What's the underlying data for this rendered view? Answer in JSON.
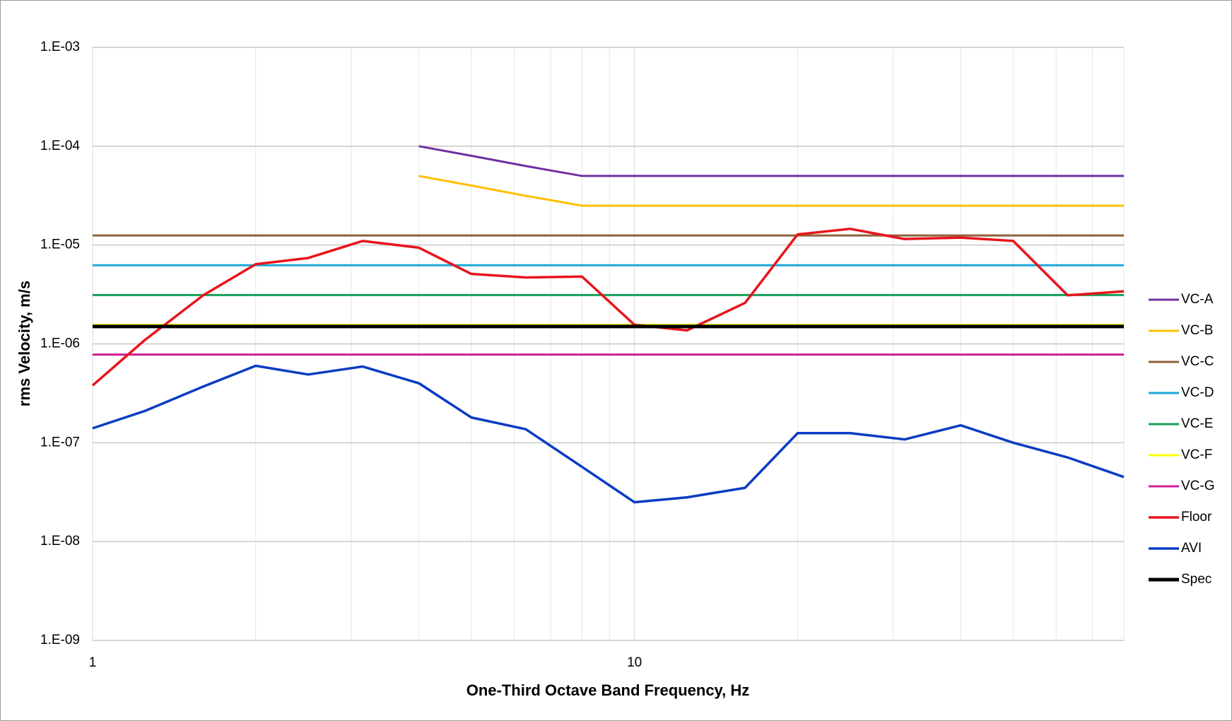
{
  "chart_data": {
    "type": "line",
    "x_label": "One-Third Octave Band Frequency, Hz",
    "y_label": "rms Velocity, m/s",
    "x": [
      1,
      1.25,
      1.6,
      2,
      2.5,
      3.15,
      4,
      5,
      6.3,
      8,
      10,
      12.5,
      16,
      20,
      25,
      31.5,
      40,
      50,
      63,
      80
    ],
    "xlim": [
      1,
      80
    ],
    "xticks": [
      1,
      10
    ],
    "x_minor_grid": [
      2,
      3,
      4,
      5,
      6,
      7,
      8,
      9,
      20,
      30,
      40,
      50,
      60,
      70,
      80
    ],
    "x_log": true,
    "y_log": true,
    "ylim": [
      1e-09,
      0.001
    ],
    "yticks": [
      {
        "value": 1e-09,
        "label": "1.E-09"
      },
      {
        "value": 1e-08,
        "label": "1.E-08"
      },
      {
        "value": 1e-07,
        "label": "1.E-07"
      },
      {
        "value": 1e-06,
        "label": "1.E-06"
      },
      {
        "value": 1e-05,
        "label": "1.E-05"
      },
      {
        "value": 0.0001,
        "label": "1.E-04"
      },
      {
        "value": 0.001,
        "label": "1.E-03"
      }
    ],
    "grid": true,
    "legend": "right",
    "series": [
      {
        "name": "VC-A",
        "color": "#7030a0",
        "width": 3,
        "values": [
          null,
          null,
          null,
          null,
          null,
          null,
          0.0001,
          8e-05,
          6.3e-05,
          5e-05,
          5e-05,
          5e-05,
          5e-05,
          5e-05,
          5e-05,
          5e-05,
          5e-05,
          5e-05,
          5e-05,
          5e-05
        ]
      },
      {
        "name": "VC-B",
        "color": "#ffc000",
        "width": 3,
        "values": [
          null,
          null,
          null,
          null,
          null,
          null,
          5e-05,
          4e-05,
          3.15e-05,
          2.5e-05,
          2.5e-05,
          2.5e-05,
          2.5e-05,
          2.5e-05,
          2.5e-05,
          2.5e-05,
          2.5e-05,
          2.5e-05,
          2.5e-05,
          2.5e-05
        ]
      },
      {
        "name": "VC-C",
        "color": "#8c6239",
        "width": 3,
        "values": [
          1.25e-05,
          1.25e-05,
          1.25e-05,
          1.25e-05,
          1.25e-05,
          1.25e-05,
          1.25e-05,
          1.25e-05,
          1.25e-05,
          1.25e-05,
          1.25e-05,
          1.25e-05,
          1.25e-05,
          1.25e-05,
          1.25e-05,
          1.25e-05,
          1.25e-05,
          1.25e-05,
          1.25e-05,
          1.25e-05
        ]
      },
      {
        "name": "VC-D",
        "color": "#1aa7d8",
        "width": 3,
        "values": [
          6.25e-06,
          6.25e-06,
          6.25e-06,
          6.25e-06,
          6.25e-06,
          6.25e-06,
          6.25e-06,
          6.25e-06,
          6.25e-06,
          6.25e-06,
          6.25e-06,
          6.25e-06,
          6.25e-06,
          6.25e-06,
          6.25e-06,
          6.25e-06,
          6.25e-06,
          6.25e-06,
          6.25e-06,
          6.25e-06
        ]
      },
      {
        "name": "VC-E",
        "color": "#16a05a",
        "width": 3,
        "values": [
          3.12e-06,
          3.12e-06,
          3.12e-06,
          3.12e-06,
          3.12e-06,
          3.12e-06,
          3.12e-06,
          3.12e-06,
          3.12e-06,
          3.12e-06,
          3.12e-06,
          3.12e-06,
          3.12e-06,
          3.12e-06,
          3.12e-06,
          3.12e-06,
          3.12e-06,
          3.12e-06,
          3.12e-06,
          3.12e-06
        ]
      },
      {
        "name": "VC-F",
        "color": "#ffff00",
        "width": 3,
        "values": [
          1.56e-06,
          1.56e-06,
          1.56e-06,
          1.56e-06,
          1.56e-06,
          1.56e-06,
          1.56e-06,
          1.56e-06,
          1.56e-06,
          1.56e-06,
          1.56e-06,
          1.56e-06,
          1.56e-06,
          1.56e-06,
          1.56e-06,
          1.56e-06,
          1.56e-06,
          1.56e-06,
          1.56e-06,
          1.56e-06
        ]
      },
      {
        "name": "VC-G",
        "color": "#cc1f96",
        "width": 3,
        "values": [
          7.8e-07,
          7.8e-07,
          7.8e-07,
          7.8e-07,
          7.8e-07,
          7.8e-07,
          7.8e-07,
          7.8e-07,
          7.8e-07,
          7.8e-07,
          7.8e-07,
          7.8e-07,
          7.8e-07,
          7.8e-07,
          7.8e-07,
          7.8e-07,
          7.8e-07,
          7.8e-07,
          7.8e-07,
          7.8e-07
        ]
      },
      {
        "name": "Floor",
        "color": "#e8141b",
        "width": 3.5,
        "values": [
          3.8e-07,
          1.1e-06,
          3.1e-06,
          6.4e-06,
          7.4e-06,
          1.1e-05,
          9.4e-06,
          5.1e-06,
          4.7e-06,
          4.8e-06,
          1.56e-06,
          1.37e-06,
          2.6e-06,
          1.28e-05,
          1.46e-05,
          1.15e-05,
          1.19e-05,
          1.1e-05,
          3.1e-06,
          3.4e-06
        ]
      },
      {
        "name": "AVI",
        "color": "#0a3cc2",
        "width": 3.5,
        "values": [
          1.4e-07,
          2.1e-07,
          3.7e-07,
          6e-07,
          4.9e-07,
          5.9e-07,
          4e-07,
          1.8e-07,
          1.37e-07,
          5.7e-08,
          2.5e-08,
          2.8e-08,
          3.5e-08,
          1.25e-07,
          1.25e-07,
          1.08e-07,
          1.5e-07,
          1e-07,
          7.1e-08,
          4.5e-08
        ]
      },
      {
        "name": "Spec",
        "color": "#000000",
        "width": 5,
        "values": [
          1.5e-06,
          1.5e-06,
          1.5e-06,
          1.5e-06,
          1.5e-06,
          1.5e-06,
          1.5e-06,
          1.5e-06,
          1.5e-06,
          1.5e-06,
          1.5e-06,
          1.5e-06,
          1.5e-06,
          1.5e-06,
          1.5e-06,
          1.5e-06,
          1.5e-06,
          1.5e-06,
          1.5e-06,
          1.5e-06
        ]
      }
    ]
  }
}
